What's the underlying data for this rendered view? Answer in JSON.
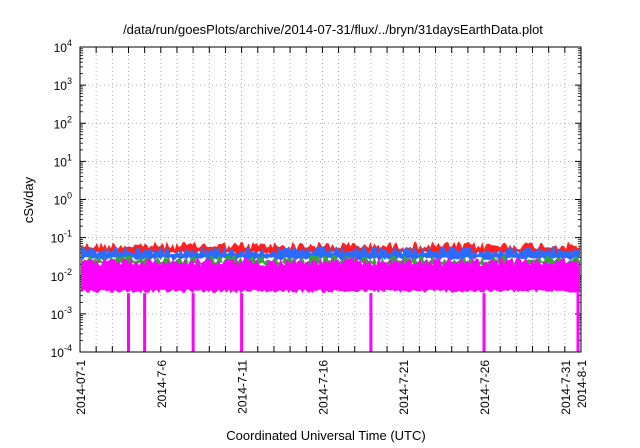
{
  "chart_data": {
    "type": "line",
    "title": "/data/run/goesPlots/archive/2014-07-31/flux/../bryn/31daysEarthData.plot",
    "xlabel": "Coordinated Universal Time (UTC)",
    "ylabel": "cSv/day",
    "y_scale": "log",
    "ylim": [
      0.0001,
      10000
    ],
    "y_ticks": [
      {
        "base": "10",
        "exp": "-4",
        "value": 0.0001
      },
      {
        "base": "10",
        "exp": "-3",
        "value": 0.001
      },
      {
        "base": "10",
        "exp": "-2",
        "value": 0.01
      },
      {
        "base": "10",
        "exp": "-1",
        "value": 0.1
      },
      {
        "base": "10",
        "exp": "0",
        "value": 1
      },
      {
        "base": "10",
        "exp": "1",
        "value": 10
      },
      {
        "base": "10",
        "exp": "2",
        "value": 100
      },
      {
        "base": "10",
        "exp": "3",
        "value": 1000
      },
      {
        "base": "10",
        "exp": "4",
        "value": 10000
      }
    ],
    "x_ticks": [
      "2014-07-1",
      "2014-7-6",
      "2014-7-11",
      "2014-7-16",
      "2014-7-21",
      "2014-7-26",
      "2014-7-31",
      "2014-8-1"
    ],
    "x_range": [
      "2014-07-01",
      "2014-08-01"
    ],
    "grid": true,
    "series": [
      {
        "color": "#ff2020",
        "typical_max": 0.08,
        "typical_min": 0.035
      },
      {
        "color": "#2a6cff",
        "typical_max": 0.06,
        "typical_min": 0.025
      },
      {
        "color": "#33a833",
        "typical_max": 0.035,
        "typical_min": 0.018
      },
      {
        "color": "#ff00ff",
        "typical_max": 0.03,
        "typical_min": 0.0035,
        "dropouts": [
          "2014-07-04",
          "2014-07-05",
          "2014-07-08",
          "2014-07-11",
          "2014-07-19",
          "2014-07-26",
          "2014-08-01"
        ],
        "dropout_min": 0.0001
      }
    ]
  }
}
